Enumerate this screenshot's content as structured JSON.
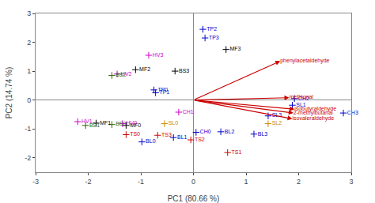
{
  "chart_data": {
    "type": "scatter",
    "xlabel": "PC1 (80.66 %)",
    "ylabel": "PC2 (14.74 %)",
    "xlim": [
      -3,
      3
    ],
    "ylim": [
      -2.5,
      3
    ],
    "xticks": [
      -3,
      -2,
      -1,
      0,
      1,
      2,
      3
    ],
    "yticks": [
      -2,
      -1,
      0,
      1,
      2,
      3
    ],
    "grid": false,
    "series": [
      {
        "type": "scatter",
        "marker": "cross",
        "labels": [
          "TP2",
          "TP3",
          "MF3",
          "HV3",
          "MF2",
          "BS3",
          "HV2",
          "BS2",
          "TP0",
          "TP1",
          "CH3",
          "CH2",
          "SL1",
          "SL3",
          "SL2",
          "CH1",
          "SL0",
          "HV1",
          "MF1",
          "HV0",
          "BS0",
          "MF0",
          "BS1",
          "TS0",
          "BL1",
          "BL0",
          "TS3",
          "TS2",
          "CH0",
          "BL2",
          "BL3",
          "TS1"
        ],
        "x": [
          0.18,
          0.22,
          0.62,
          -0.85,
          -1.1,
          -0.35,
          -1.45,
          -1.55,
          -0.75,
          -0.72,
          2.85,
          1.92,
          1.88,
          1.42,
          1.42,
          -0.28,
          -0.55,
          -2.2,
          -1.85,
          -1.35,
          -1.55,
          -1.28,
          -2.05,
          -1.28,
          -0.38,
          -0.98,
          -0.68,
          -0.05,
          0.05,
          0.52,
          1.15,
          0.65
        ],
        "values": [
          2.45,
          2.15,
          1.75,
          1.55,
          1.05,
          1.0,
          0.9,
          0.85,
          0.35,
          0.25,
          -0.45,
          0.05,
          -0.18,
          -0.55,
          -0.82,
          -0.42,
          -0.82,
          -0.75,
          -0.8,
          -0.82,
          -0.85,
          -0.88,
          -0.88,
          -1.2,
          -1.3,
          -1.45,
          -1.22,
          -1.38,
          -1.12,
          -1.1,
          -1.18,
          -1.82
        ],
        "colors": [
          "#0000cc",
          "#0000cc",
          "#000000",
          "#cc00cc",
          "#000000",
          "#000000",
          "#cc00cc",
          "#336600",
          "#0000cc",
          "#0000cc",
          "#0000cc",
          "#0000cc",
          "#0000cc",
          "#0000cc",
          "#cc8800",
          "#cc00cc",
          "#cc8800",
          "#cc00cc",
          "#000000",
          "#cc00cc",
          "#336600",
          "#000000",
          "#336600",
          "#cc0000",
          "#0000cc",
          "#0000cc",
          "#cc0000",
          "#cc0000",
          "#0000cc",
          "#0000cc",
          "#0000cc",
          "#cc0000"
        ]
      },
      {
        "type": "arrow",
        "color": "#cc0000",
        "labels": [
          "phenylacetaldehyde",
          "methional",
          "isobutyraldehyde",
          "2-methylbutanal",
          "isovaleraldehyde"
        ],
        "x": [
          1.65,
          1.82,
          1.92,
          1.9,
          1.88
        ],
        "values": [
          1.35,
          0.08,
          -0.32,
          -0.45,
          -0.65
        ]
      }
    ]
  }
}
